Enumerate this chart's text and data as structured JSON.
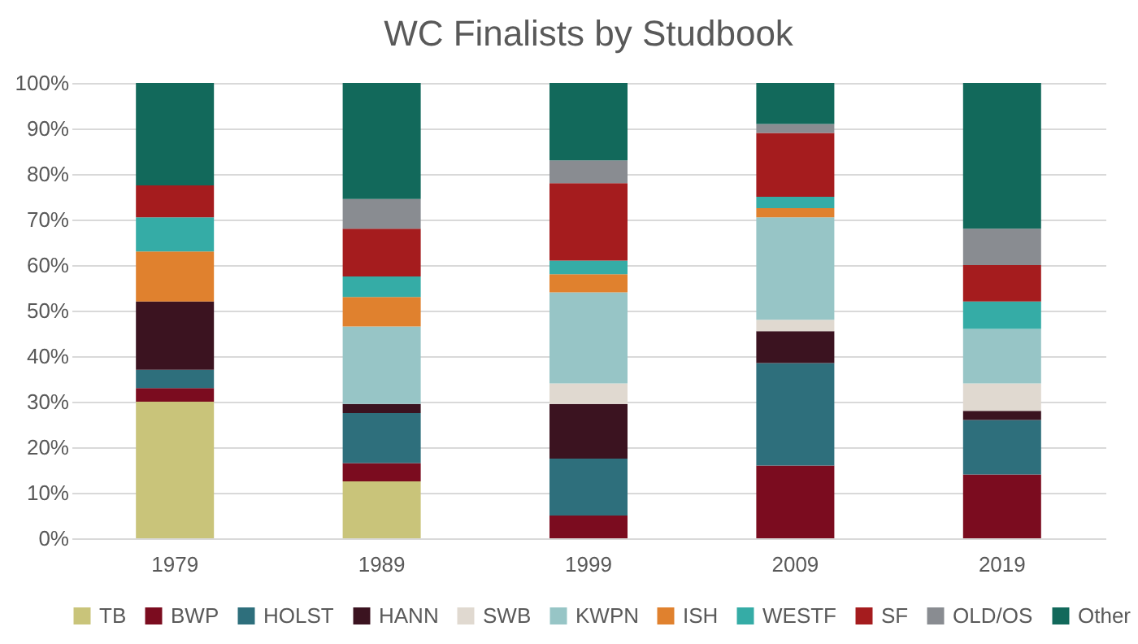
{
  "chart_data": {
    "type": "bar",
    "title": "WC Finalists by Studbook",
    "stacked": true,
    "categories": [
      "1979",
      "1989",
      "1999",
      "2009",
      "2019"
    ],
    "series": [
      {
        "name": "TB",
        "color": "#c9c47a",
        "values": [
          30,
          12.5,
          0,
          0,
          0
        ]
      },
      {
        "name": "BWP",
        "color": "#7b0c1f",
        "values": [
          3,
          4,
          5,
          16,
          14
        ]
      },
      {
        "name": "HOLST",
        "color": "#2e6f7c",
        "values": [
          4,
          11,
          12.5,
          22.5,
          12
        ]
      },
      {
        "name": "HANN",
        "color": "#3b1320",
        "values": [
          15,
          2,
          12,
          7,
          2
        ]
      },
      {
        "name": "SWB",
        "color": "#e0d9d0",
        "values": [
          0,
          0,
          4.5,
          2.5,
          6
        ]
      },
      {
        "name": "KWPN",
        "color": "#97c5c6",
        "values": [
          0,
          17,
          20,
          22.5,
          12
        ]
      },
      {
        "name": "ISH",
        "color": "#e0812e",
        "values": [
          11,
          6.5,
          4,
          2,
          0
        ]
      },
      {
        "name": "WESTF",
        "color": "#35aca6",
        "values": [
          7.5,
          4.5,
          3,
          2.5,
          6
        ]
      },
      {
        "name": "SF",
        "color": "#a51c1e",
        "values": [
          7,
          10.5,
          17,
          14,
          8
        ]
      },
      {
        "name": "OLD/OS",
        "color": "#898c91",
        "values": [
          0,
          6.5,
          5,
          2,
          8
        ]
      },
      {
        "name": "Other",
        "color": "#12695b",
        "values": [
          22.5,
          25.5,
          17,
          9,
          32
        ]
      }
    ],
    "ylim": [
      0,
      100
    ],
    "yticks": [
      {
        "value": 0,
        "label": "0%"
      },
      {
        "value": 10,
        "label": "10%"
      },
      {
        "value": 20,
        "label": "20%"
      },
      {
        "value": 30,
        "label": "30%"
      },
      {
        "value": 40,
        "label": "40%"
      },
      {
        "value": 50,
        "label": "50%"
      },
      {
        "value": 60,
        "label": "60%"
      },
      {
        "value": 70,
        "label": "70%"
      },
      {
        "value": 80,
        "label": "80%"
      },
      {
        "value": 90,
        "label": "90%"
      },
      {
        "value": 100,
        "label": "100%"
      }
    ],
    "grid": "y",
    "legend": "bottom"
  }
}
